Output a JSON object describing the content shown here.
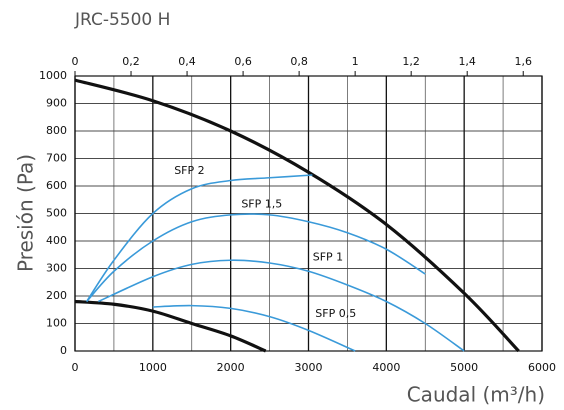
{
  "chart_data": {
    "type": "line",
    "title": "JRC-5500 H",
    "ylabel": "Presión (Pa)",
    "xlabel": "Caudal (m³/h)",
    "xlim": [
      0,
      6000
    ],
    "xticks": [
      0,
      1000,
      2000,
      3000,
      4000,
      5000,
      6000
    ],
    "x_minor_grid": [
      500,
      1500,
      2500,
      3500,
      4500,
      5500
    ],
    "x2lim": [
      0,
      1.667
    ],
    "x2ticks": [
      0,
      {
        "value": 0.2,
        "label": "0,2"
      },
      {
        "value": 0.4,
        "label": "0,4"
      },
      {
        "value": 0.6,
        "label": "0,6"
      },
      {
        "value": 0.8,
        "label": "0,8"
      },
      1,
      {
        "value": 1.2,
        "label": "1,2"
      },
      {
        "value": 1.4,
        "label": "1,4"
      },
      {
        "value": 1.6,
        "label": "1,6"
      }
    ],
    "ylim": [
      0,
      1000
    ],
    "yticks": [
      0,
      100,
      200,
      300,
      400,
      500,
      600,
      700,
      800,
      900,
      1000
    ],
    "grid": true,
    "series": [
      {
        "color": "#111111",
        "x": [
          0,
          1000,
          2000,
          3000,
          4000,
          5000,
          5700
        ],
        "values": [
          985,
          910,
          800,
          650,
          460,
          210,
          0
        ]
      },
      {
        "color": "#111111",
        "x": [
          0,
          500,
          1000,
          1500,
          2000,
          2450
        ],
        "values": [
          180,
          170,
          145,
          100,
          55,
          0
        ]
      },
      {
        "name": "SFP 2",
        "color": "#3a9ad9",
        "x": [
          150,
          500,
          1000,
          1500,
          2000,
          2500,
          3050
        ],
        "values": [
          180,
          330,
          500,
          590,
          620,
          630,
          640
        ]
      },
      {
        "name": "SFP 1,5",
        "color": "#3a9ad9",
        "x": [
          150,
          500,
          1000,
          1500,
          2000,
          2500,
          3000,
          3500,
          4000,
          4500
        ],
        "values": [
          180,
          290,
          400,
          470,
          495,
          495,
          470,
          430,
          370,
          280
        ]
      },
      {
        "name": "SFP 1",
        "color": "#3a9ad9",
        "x": [
          300,
          1000,
          1500,
          2000,
          2500,
          3000,
          3500,
          4000,
          4500,
          5000
        ],
        "values": [
          180,
          270,
          315,
          330,
          320,
          290,
          240,
          180,
          100,
          0
        ]
      },
      {
        "name": "SFP 0,5",
        "color": "#3a9ad9",
        "x": [
          1000,
          1500,
          2000,
          2500,
          3000,
          3600
        ],
        "values": [
          160,
          165,
          155,
          125,
          75,
          0
        ]
      }
    ]
  }
}
